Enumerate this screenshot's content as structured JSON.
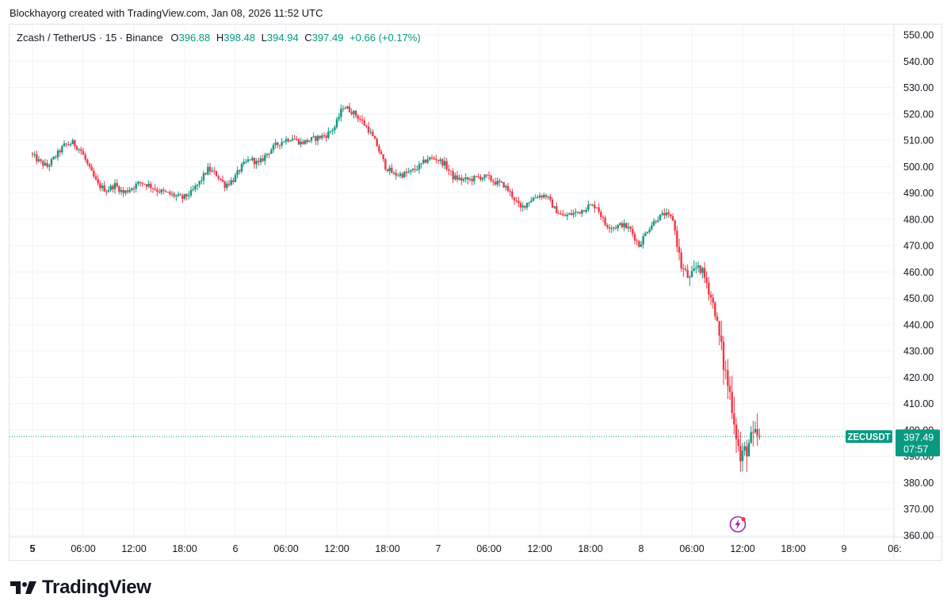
{
  "header": {
    "caption": "Blockhayorg created with TradingView.com, Jan 08, 2026 11:52 UTC"
  },
  "legend": {
    "symbol": "Zcash / TetherUS · 15 · Binance",
    "o_label": "O",
    "o_value": "396.88",
    "h_label": "H",
    "h_value": "398.48",
    "l_label": "L",
    "l_value": "394.94",
    "c_label": "C",
    "c_value": "397.49",
    "change": "+0.66 (+0.17%)"
  },
  "colors": {
    "up": "#089981",
    "down": "#f23645",
    "grid": "#f0f3fa",
    "axis_text": "#131722",
    "price_line": "#089981"
  },
  "brand": {
    "name": "TradingView"
  },
  "chart_data": {
    "type": "candlestick",
    "title": "Zcash / TetherUS · 15 · Binance",
    "timeframe": "15",
    "y_axis": {
      "ticks": [
        360,
        370,
        380,
        390,
        400,
        410,
        420,
        430,
        440,
        450,
        460,
        470,
        480,
        490,
        500,
        510,
        520,
        530,
        540,
        550
      ],
      "tick_labels": [
        "360.00",
        "370.00",
        "380.00",
        "390.00",
        "400.00",
        "410.00",
        "420.00",
        "430.00",
        "440.00",
        "450.00",
        "460.00",
        "470.00",
        "480.00",
        "490.00",
        "500.00",
        "510.00",
        "520.00",
        "530.00",
        "540.00",
        "550.00"
      ],
      "ylim": [
        360,
        552
      ]
    },
    "x_axis": {
      "tick_labels": [
        "5",
        "06:00",
        "12:00",
        "18:00",
        "6",
        "06:00",
        "12:00",
        "18:00",
        "7",
        "06:00",
        "12:00",
        "18:00",
        "8",
        "06:00",
        "12:00",
        "18:00",
        "9",
        "06:"
      ],
      "tick_hours": [
        0,
        6,
        12,
        18,
        24,
        30,
        36,
        42,
        48,
        54,
        60,
        66,
        72,
        78,
        84,
        90,
        96,
        102
      ],
      "day_ticks": [
        0,
        24,
        48,
        72,
        96
      ]
    },
    "price_anchors_hours_price": [
      [
        0,
        505
      ],
      [
        1,
        502
      ],
      [
        2,
        500
      ],
      [
        3,
        504
      ],
      [
        4,
        508
      ],
      [
        5,
        509
      ],
      [
        6,
        506
      ],
      [
        7,
        499
      ],
      [
        8,
        493
      ],
      [
        9,
        491
      ],
      [
        10,
        493
      ],
      [
        11,
        490
      ],
      [
        12,
        492
      ],
      [
        13,
        494
      ],
      [
        14,
        493
      ],
      [
        15,
        491
      ],
      [
        16,
        490
      ],
      [
        17,
        489
      ],
      [
        18,
        488
      ],
      [
        19,
        490
      ],
      [
        20,
        494
      ],
      [
        21,
        499
      ],
      [
        22,
        497
      ],
      [
        23,
        493
      ],
      [
        24,
        495
      ],
      [
        25,
        500
      ],
      [
        26,
        503
      ],
      [
        27,
        501
      ],
      [
        28,
        505
      ],
      [
        29,
        508
      ],
      [
        30,
        510
      ],
      [
        31,
        511
      ],
      [
        32,
        509
      ],
      [
        33,
        510
      ],
      [
        34,
        511
      ],
      [
        35,
        512
      ],
      [
        36,
        515
      ],
      [
        37,
        523
      ],
      [
        38,
        521
      ],
      [
        39,
        518
      ],
      [
        40,
        514
      ],
      [
        41,
        508
      ],
      [
        42,
        500
      ],
      [
        43,
        497
      ],
      [
        44,
        497
      ],
      [
        45,
        498
      ],
      [
        46,
        500
      ],
      [
        47,
        503
      ],
      [
        48,
        503
      ],
      [
        49,
        501
      ],
      [
        50,
        496
      ],
      [
        51,
        495
      ],
      [
        52,
        495
      ],
      [
        53,
        496
      ],
      [
        54,
        496
      ],
      [
        55,
        494
      ],
      [
        56,
        493
      ],
      [
        57,
        489
      ],
      [
        58,
        484
      ],
      [
        59,
        487
      ],
      [
        60,
        489
      ],
      [
        61,
        489
      ],
      [
        62,
        484
      ],
      [
        63,
        481
      ],
      [
        64,
        482
      ],
      [
        65,
        483
      ],
      [
        66,
        485
      ],
      [
        67,
        485
      ],
      [
        68,
        478
      ],
      [
        69,
        477
      ],
      [
        70,
        478
      ],
      [
        71,
        476
      ],
      [
        72,
        470
      ],
      [
        73,
        476
      ],
      [
        74,
        480
      ],
      [
        75,
        482
      ],
      [
        76,
        480
      ],
      [
        77,
        462
      ],
      [
        78,
        457
      ],
      [
        79,
        463
      ],
      [
        80,
        456
      ],
      [
        81,
        445
      ],
      [
        82,
        425
      ],
      [
        83,
        410
      ],
      [
        84,
        388
      ],
      [
        85,
        395
      ],
      [
        86,
        397.49
      ]
    ],
    "last_price": {
      "symbol": "ZECUSDT",
      "value": "397.49",
      "countdown": "07:57"
    },
    "ohlc": {
      "open": 396.88,
      "high": 398.48,
      "low": 394.94,
      "close": 397.49,
      "change": 0.66,
      "change_pct": 0.17
    }
  }
}
